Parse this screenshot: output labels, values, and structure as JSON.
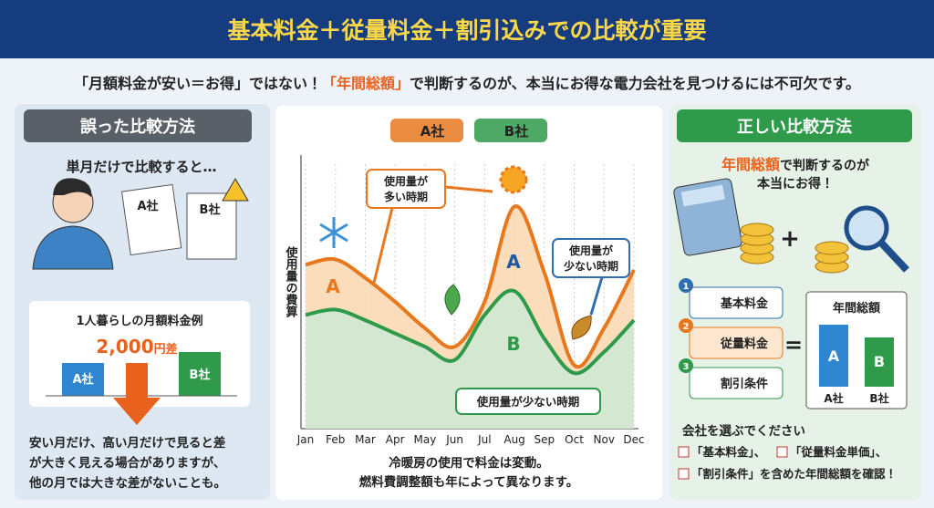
{
  "header": {
    "title": "基本料金＋従量料金＋割引込みでの比較が重要"
  },
  "intro": {
    "before": "「月額料金が安い＝お得」ではない！",
    "highlight": "「年間総額」",
    "after": "で判断するのが、本当にお得な電力会社を見つけるには不可欠です。"
  },
  "wrong": {
    "heading": "誤った比較方法",
    "caption": "単月だけで比較すると…",
    "doc_a": "A社",
    "doc_b": "B社",
    "example": {
      "title": "1人暮らしの月額料金例",
      "diff_amount": "2,000",
      "diff_unit": "円差",
      "bar_a": "A社",
      "bar_b": "B社"
    },
    "note": [
      "安い月だけ、高い月だけで見ると差",
      "が大きく見える場合がありますが、",
      "他の月では大きな差がないことも。"
    ]
  },
  "chart_data": {
    "type": "line",
    "y_label": "使用量の費算",
    "categories": [
      "Jan",
      "Feb",
      "Mar",
      "Apr",
      "May",
      "Jun",
      "Jul",
      "Aug",
      "Sep",
      "Oct",
      "Nov",
      "Dec"
    ],
    "series": [
      {
        "name": "A社",
        "color": "#e8781e",
        "values": [
          62,
          64,
          57,
          48,
          38,
          31,
          48,
          84,
          59,
          24,
          38,
          60
        ]
      },
      {
        "name": "B社",
        "color": "#2e9a4a",
        "values": [
          43,
          45,
          41,
          36,
          31,
          26,
          43,
          52,
          34,
          21,
          29,
          41
        ]
      }
    ],
    "ylim": [
      0,
      100
    ],
    "annotations": {
      "high_season": [
        "使用量が",
        "多い時期"
      ],
      "low_season_right": [
        "使用量が",
        "少ない時期"
      ],
      "low_season_bottom": "使用量が少ない時期",
      "curve_a_left": "A",
      "curve_a_peak": "A",
      "curve_b_peak": "B"
    },
    "caption": [
      "冷暖房の使用で料金は変動。",
      "燃料費調整額も年によって異なります。"
    ]
  },
  "right": {
    "heading": "正しい比較方法",
    "lead_highlight": "年間総額",
    "lead_rest": "で判断するのが",
    "lead_line2": "本当にお得！",
    "items": [
      {
        "num": "1",
        "label": "基本料金"
      },
      {
        "num": "2",
        "label": "従量料金"
      },
      {
        "num": "3",
        "label": "割引条件"
      }
    ],
    "equals": "=",
    "total": {
      "title": "年間総額",
      "bar_a": "A",
      "bar_b": "B",
      "label_a": "A社",
      "label_b": "B社"
    },
    "choose": "会社を選ぶでください",
    "checklist": [
      "「基本料金」、",
      "「従量料金単価」、",
      "「割引条件」を含めた年間総額を確認！"
    ]
  }
}
